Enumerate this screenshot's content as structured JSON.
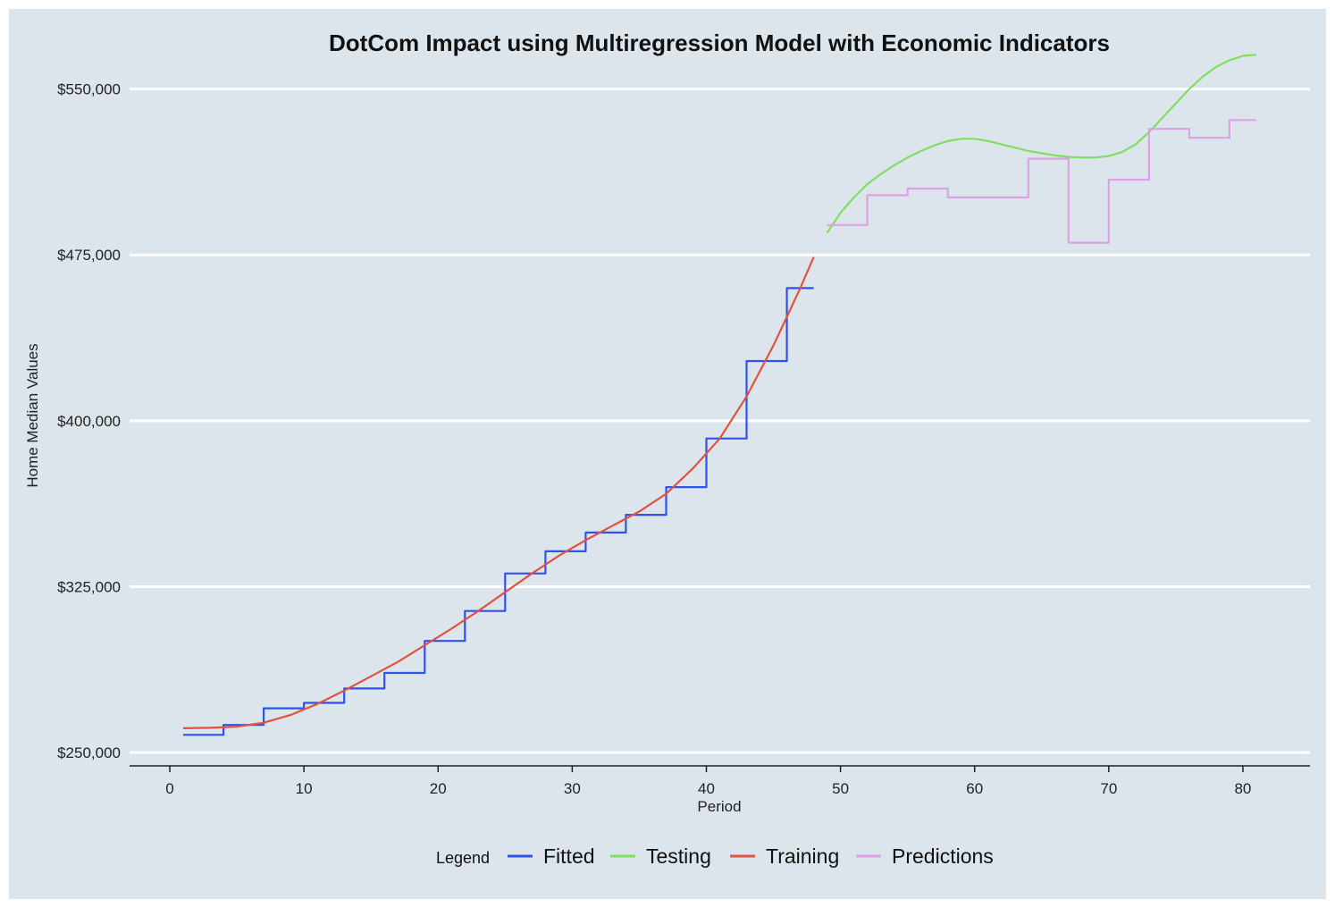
{
  "chart_data": {
    "type": "line",
    "title": "DotCom Impact using Multiregression Model with Economic Indicators",
    "xlabel": "Period",
    "ylabel": "Home Median Values",
    "xlim": [
      -3,
      85
    ],
    "ylim": [
      244000,
      566000
    ],
    "x_ticks": [
      0,
      10,
      20,
      30,
      40,
      50,
      60,
      70,
      80
    ],
    "x_tick_labels": [
      "0",
      "10",
      "20",
      "30",
      "40",
      "50",
      "60",
      "70",
      "80"
    ],
    "y_ticks": [
      250000,
      325000,
      400000,
      475000,
      550000
    ],
    "y_tick_labels": [
      "$250,000",
      "$325,000",
      "$400,000",
      "$475,000",
      "$550,000"
    ],
    "grid": "horizontal",
    "background": "#dce5eb",
    "legend": {
      "title": "Legend",
      "position": "bottom",
      "entries": [
        "Fitted",
        "Testing",
        "Training",
        "Predictions"
      ]
    },
    "series": [
      {
        "name": "Fitted",
        "color": "#2f52e8",
        "style": "step",
        "x": [
          1,
          3,
          4,
          6,
          7,
          9,
          10,
          12,
          13,
          15,
          16,
          18,
          19,
          21,
          22,
          24,
          25,
          27,
          28,
          30,
          31,
          33,
          34,
          36,
          37,
          39,
          40,
          42,
          43,
          45,
          46,
          48
        ],
        "y": [
          258000,
          258000,
          262500,
          262500,
          270000,
          270000,
          272500,
          272500,
          279000,
          279000,
          286000,
          286000,
          300500,
          300500,
          314000,
          314000,
          331000,
          331000,
          341000,
          341000,
          349500,
          349500,
          357500,
          357500,
          370000,
          370000,
          392000,
          392000,
          427000,
          427000,
          460000,
          460000
        ]
      },
      {
        "name": "Testing",
        "color": "#7ee060",
        "style": "line",
        "x": [
          49,
          50,
          51,
          52,
          53,
          54,
          55,
          56,
          57,
          58,
          59,
          60,
          61,
          62,
          63,
          64,
          65,
          66,
          67,
          68,
          69,
          70,
          71,
          72,
          73,
          74,
          75,
          76,
          77,
          78,
          79,
          80,
          81
        ],
        "y": [
          485000,
          494000,
          501000,
          507000,
          511500,
          515500,
          519000,
          522000,
          524500,
          526500,
          527500,
          527500,
          526500,
          525000,
          523500,
          522000,
          521000,
          520000,
          519300,
          519000,
          519000,
          519700,
          521500,
          525000,
          530500,
          537000,
          543500,
          550000,
          555500,
          560000,
          563000,
          565000,
          565500
        ]
      },
      {
        "name": "Training",
        "color": "#e0543f",
        "style": "line",
        "x": [
          1,
          3,
          5,
          7,
          9,
          11,
          13,
          15,
          17,
          19,
          21,
          23,
          25,
          27,
          29,
          31,
          33,
          35,
          37,
          39,
          41,
          43,
          45,
          46,
          47,
          48
        ],
        "y": [
          261000,
          261200,
          261700,
          263500,
          267000,
          272000,
          278000,
          284500,
          291000,
          298500,
          306000,
          314000,
          322500,
          331000,
          339000,
          346000,
          352500,
          359000,
          367000,
          378500,
          392000,
          411000,
          434000,
          447000,
          460000,
          474000
        ]
      },
      {
        "name": "Predictions",
        "color": "#dea0e6",
        "style": "step",
        "x": [
          49,
          51,
          52,
          54,
          55,
          57,
          58,
          63,
          64,
          66,
          67,
          69,
          70,
          72,
          73,
          75,
          76,
          78,
          79,
          81
        ],
        "y": [
          488500,
          488500,
          502000,
          502000,
          505000,
          505000,
          501000,
          501000,
          518500,
          518500,
          480500,
          480500,
          509000,
          509000,
          532000,
          532000,
          528000,
          528000,
          536000,
          536000
        ]
      }
    ]
  }
}
